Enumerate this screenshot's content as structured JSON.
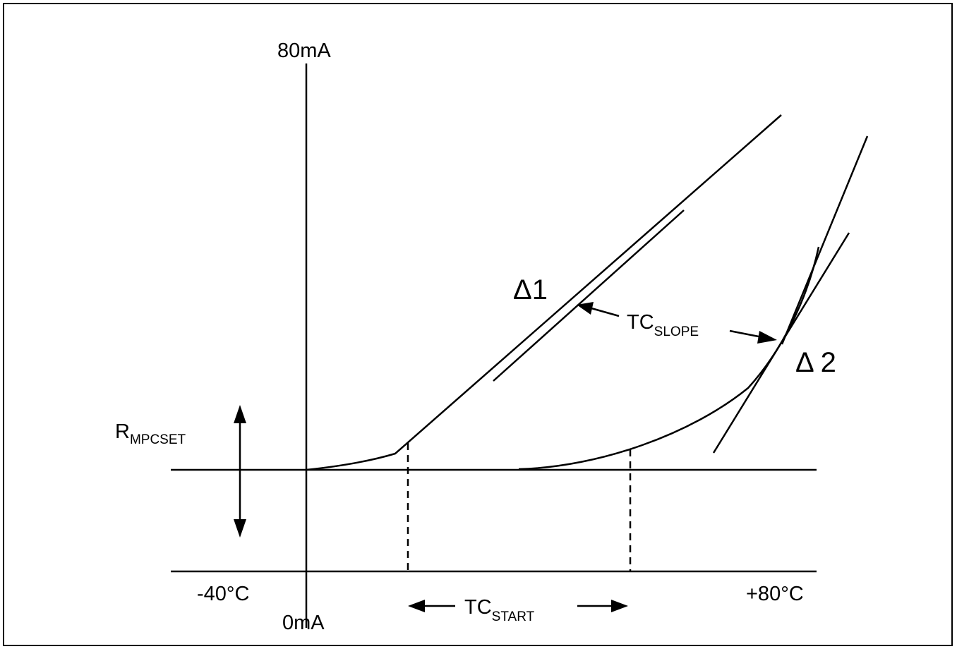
{
  "axes": {
    "y_top_label": "80mA",
    "y_bottom_label": "0mA",
    "x_left_label": "-40°C",
    "x_right_label": "+80°C"
  },
  "labels": {
    "r_mpcset_main": "R",
    "r_mpcset_sub": "MPCSET",
    "tc_start_main": "TC",
    "tc_start_sub": "START",
    "tc_slope_main": "TC",
    "tc_slope_sub": "SLOPE",
    "delta1": "Δ1",
    "delta2": "Δ 2"
  },
  "colors": {
    "line": "#000000",
    "background": "#ffffff"
  }
}
